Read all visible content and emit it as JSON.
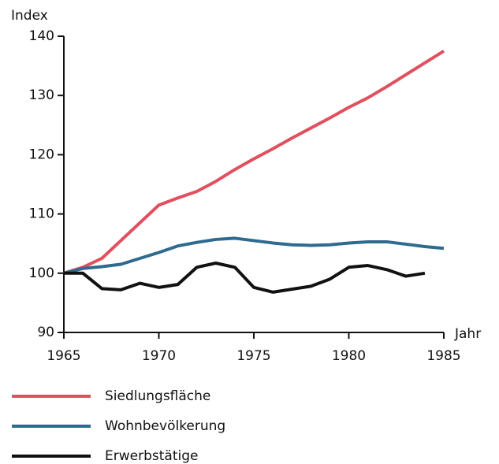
{
  "chart_data": {
    "type": "line",
    "y_label": "Index",
    "x_label": "Jahr",
    "x": [
      1965,
      1966,
      1967,
      1968,
      1969,
      1970,
      1971,
      1972,
      1973,
      1974,
      1975,
      1976,
      1977,
      1978,
      1979,
      1980,
      1981,
      1982,
      1983,
      1984,
      1985
    ],
    "xlim": [
      1965,
      1985
    ],
    "xticks": [
      1965,
      1970,
      1975,
      1980,
      1985
    ],
    "ylim": [
      90,
      140
    ],
    "yticks": [
      90,
      100,
      110,
      120,
      130,
      140
    ],
    "grid": false,
    "series": [
      {
        "name": "Siedlungsfläche",
        "color": "#e0505f",
        "values": [
          100,
          101,
          102.5,
          105.5,
          108.5,
          111.5,
          112.7,
          113.8,
          115.5,
          117.5,
          119.3,
          121,
          122.8,
          124.5,
          126.2,
          128,
          129.6,
          131.5,
          133.5,
          135.5,
          137.5
        ]
      },
      {
        "name": "Wohnbevölkerung",
        "color": "#2e6b8e",
        "values": [
          100,
          100.8,
          101.1,
          101.5,
          102.5,
          103.5,
          104.6,
          105.2,
          105.7,
          105.9,
          105.5,
          105.1,
          104.8,
          104.7,
          104.8,
          105.1,
          105.3,
          105.3,
          104.9,
          104.5,
          104.2
        ]
      },
      {
        "name": "Erwerbstätige",
        "color": "#111111",
        "values": [
          100,
          100,
          97.4,
          97.2,
          98.3,
          97.6,
          98.1,
          101,
          101.7,
          101,
          97.6,
          96.8,
          97.3,
          97.8,
          99,
          101,
          101.3,
          100.6,
          99.5,
          100,
          null
        ]
      }
    ]
  }
}
